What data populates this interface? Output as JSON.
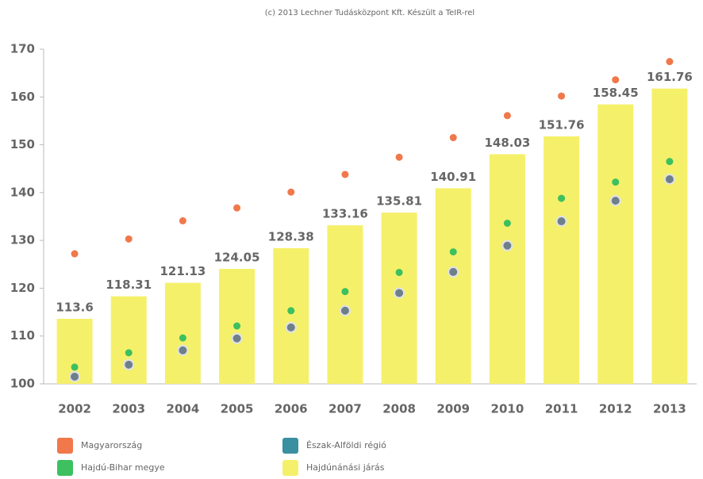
{
  "chart_data": {
    "type": "bar",
    "title": "(c) 2013 Lechner Tudásközpont Kft. Készült a TeIR-rel",
    "categories": [
      "2002",
      "2003",
      "2004",
      "2005",
      "2006",
      "2007",
      "2008",
      "2009",
      "2010",
      "2011",
      "2012",
      "2013"
    ],
    "series": [
      {
        "name": "Magyarország",
        "type": "scatter",
        "color": "#f0784a",
        "values": [
          127.2,
          130.3,
          134.1,
          136.8,
          140.1,
          143.8,
          147.4,
          151.5,
          156.1,
          160.2,
          163.6,
          167.4
        ]
      },
      {
        "name": "Észak-Alföldi régió",
        "type": "scatter",
        "color": "#3a8fa0",
        "values": [
          101.5,
          104.0,
          107.0,
          109.5,
          111.8,
          115.3,
          119.0,
          123.4,
          128.9,
          134.0,
          138.3,
          142.8
        ]
      },
      {
        "name": "Hajdú-Bihar megye",
        "type": "scatter",
        "color": "#3cc060",
        "values": [
          103.5,
          106.5,
          109.6,
          112.1,
          115.3,
          119.3,
          123.3,
          127.6,
          133.6,
          138.8,
          142.2,
          146.5
        ]
      },
      {
        "name": "Hajdúnánási járás",
        "type": "bar",
        "color": "#f5f06a",
        "values": [
          113.6,
          118.31,
          121.13,
          124.05,
          128.38,
          133.16,
          135.81,
          140.91,
          148.03,
          151.76,
          158.45,
          161.76
        ]
      }
    ],
    "ylim": [
      100,
      170
    ],
    "yticks": [
      100,
      110,
      120,
      130,
      140,
      150,
      160,
      170
    ]
  }
}
